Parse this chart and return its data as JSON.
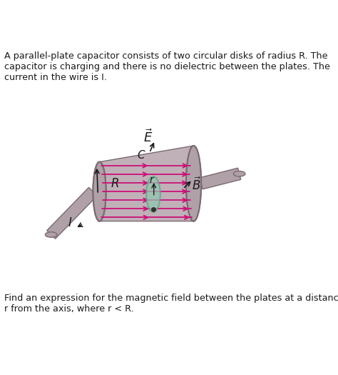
{
  "bg_color": "#ffffff",
  "text_color": "#1a1a1a",
  "top_text": "A parallel-plate capacitor consists of two circular disks of radius R. The\ncapacitor is charging and there is no dielectric between the plates. The\ncurrent in the wire is I.",
  "bottom_text": "Find an expression for the magnetic field between the plates at a distance\nr from the axis, where r < R.",
  "disk_color": "#b0a0a8",
  "disk_edge_color": "#7a6a72",
  "cylinder_color": "#c0b0b8",
  "rod_color": "#b0a0a8",
  "rod_edge_color": "#7a6a72",
  "arrow_color": "#cc1177",
  "label_color": "#1a1a1a",
  "green_ellipse_color": "#90c8b0",
  "green_ellipse_edge": "#50a880"
}
